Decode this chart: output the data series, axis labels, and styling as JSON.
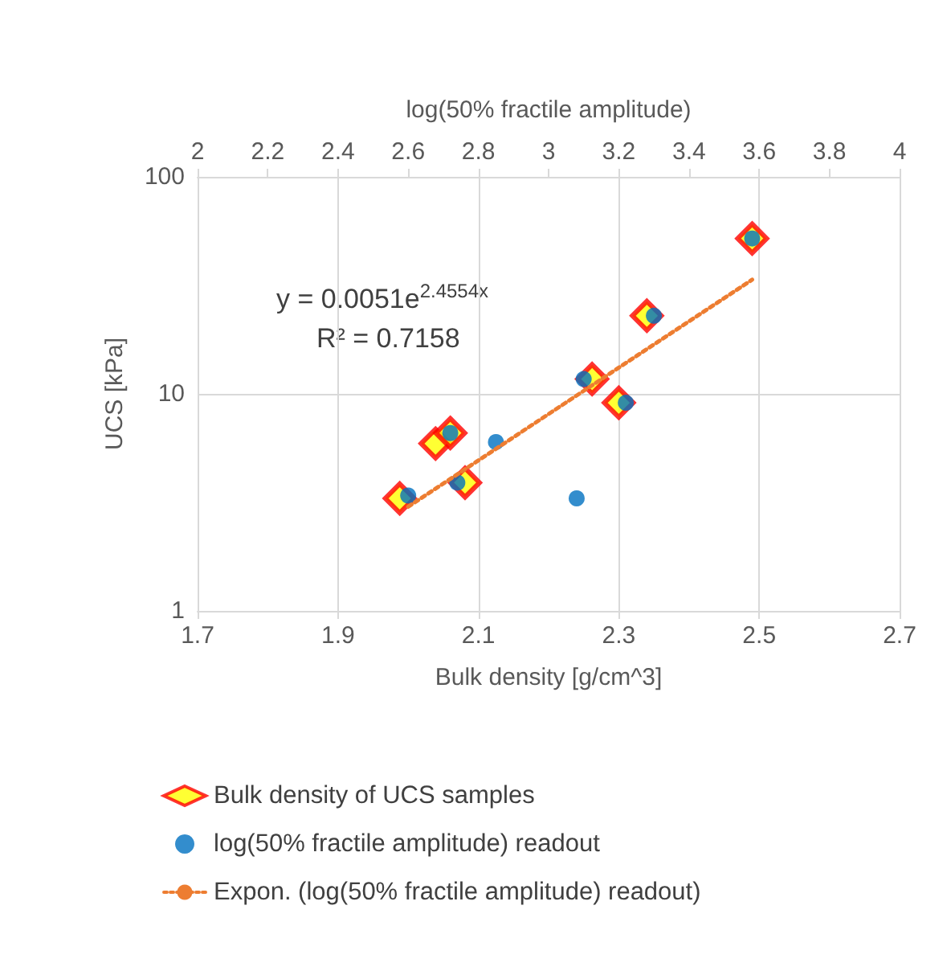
{
  "chart_data": {
    "type": "scatter",
    "xlabel": "Bulk density [g/cm^3]",
    "x2label": "log(50% fractile amplitude)",
    "ylabel": "UCS [kPa]",
    "annotations": [
      "y = 0.0051e$^{2.4554x}$",
      "R² = 0.7158"
    ],
    "series": [
      {
        "name": "Bulk density of UCS samples",
        "color": "#ff0000",
        "marker": "diamond",
        "x": [
          1.988,
          2.039,
          2.06,
          2.081,
          2.262,
          2.3,
          2.34,
          2.49
        ],
        "values": [
          3.3,
          5.9,
          6.6,
          3.9,
          11.7,
          9.1,
          22.9,
          52
        ]
      },
      {
        "name": "log(50% fractile amplitude) readout",
        "color": "#0070c0",
        "marker": "circle",
        "axis": "x2",
        "x": [
          2.6,
          2.72,
          2.74,
          2.85,
          3.08,
          3.1,
          3.22,
          3.3,
          3.58
        ],
        "values": [
          3.4,
          6.6,
          3.9,
          6.0,
          3.3,
          11.7,
          9.1,
          22.9,
          52
        ]
      },
      {
        "name": "Expon. (log(50% fractile amplitude) readout)",
        "type": "line",
        "color": "#ed7d31",
        "line_style": "dotted",
        "marker": "none",
        "axis": "x2",
        "x": [
          2.6,
          3.58
        ],
        "values": [
          3.02,
          33.6
        ]
      }
    ],
    "xlim": [
      1.7,
      2.7
    ],
    "xticks": [
      1.7,
      1.9,
      2.1,
      2.3,
      2.5,
      2.7
    ],
    "x2lim": [
      2,
      4
    ],
    "x2ticks": [
      2,
      2.2,
      2.4,
      2.6,
      2.8,
      3,
      3.2,
      3.4,
      3.6,
      3.8,
      4
    ],
    "ylim": [
      1,
      100
    ],
    "yticks": [
      1,
      10,
      100
    ],
    "log": "y",
    "grid": true,
    "legend": "bottom"
  }
}
